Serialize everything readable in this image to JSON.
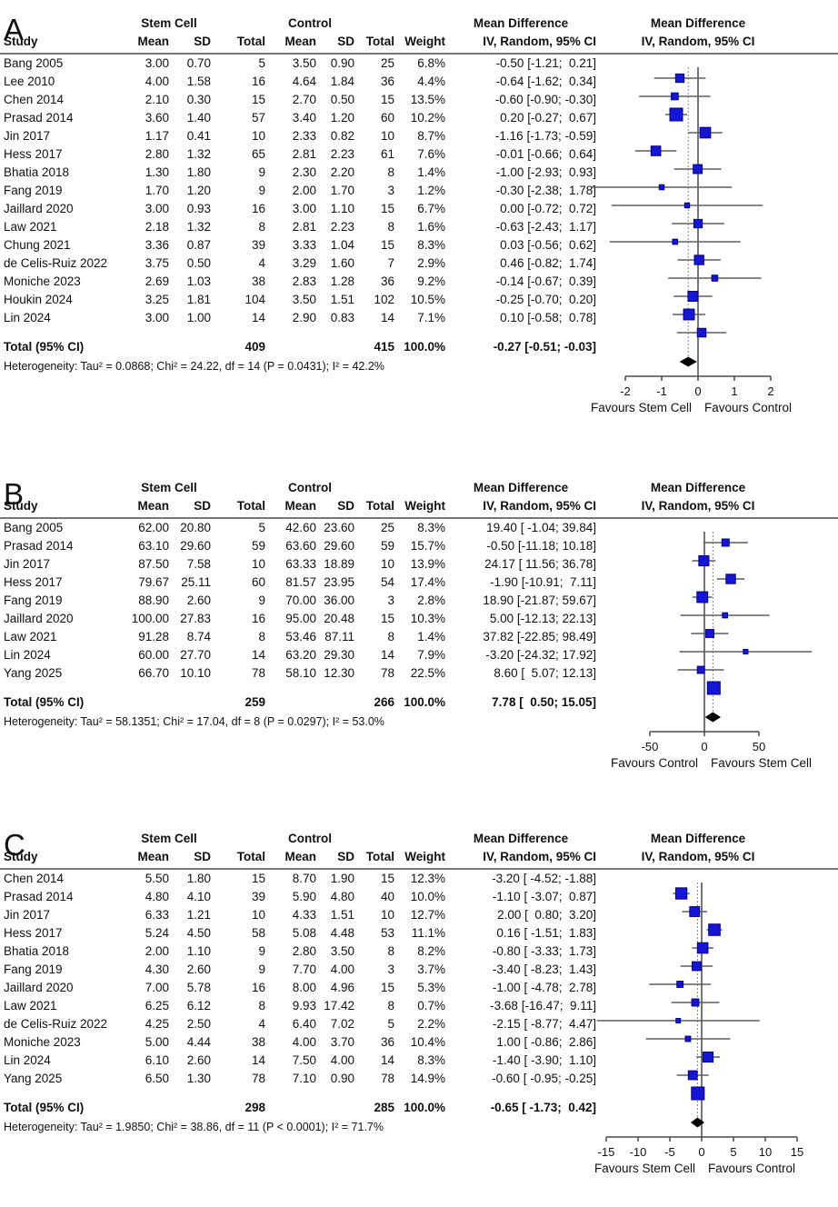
{
  "header": {
    "study": "Study",
    "group1": "Stem Cell",
    "group2": "Control",
    "mean": "Mean",
    "sd": "SD",
    "total": "Total",
    "weight": "Weight",
    "md": "Mean Difference",
    "method": "IV, Random, 95% CI"
  },
  "colors": {
    "square_fill": "#1515d6",
    "square_stroke": "#000090",
    "ci_line": "#5f5f5f",
    "axis_line": "#4a4a4a",
    "rule": "#777777",
    "diamond": "#000000",
    "dotted_line": "#888888"
  },
  "chart_data": [
    {
      "type": "forest",
      "label": "A",
      "effect_measure": "Mean Difference",
      "method": "IV, Random, 95% CI",
      "studies": [
        {
          "study": "Bang 2005",
          "mean1": "3.00",
          "sd1": "0.70",
          "n1": "5",
          "mean2": "3.50",
          "sd2": "0.90",
          "n2": "25",
          "weight": "6.8%",
          "weight_pct": 6.8,
          "ci_text": "-0.50 [-1.21;  0.21]",
          "est": -0.5,
          "lo": -1.21,
          "hi": 0.21
        },
        {
          "study": "Lee 2010",
          "mean1": "4.00",
          "sd1": "1.58",
          "n1": "16",
          "mean2": "4.64",
          "sd2": "1.84",
          "n2": "36",
          "weight": "4.4%",
          "weight_pct": 4.4,
          "ci_text": "-0.64 [-1.62;  0.34]",
          "est": -0.64,
          "lo": -1.62,
          "hi": 0.34
        },
        {
          "study": "Chen 2014",
          "mean1": "2.10",
          "sd1": "0.30",
          "n1": "15",
          "mean2": "2.70",
          "sd2": "0.50",
          "n2": "15",
          "weight": "13.5%",
          "weight_pct": 13.5,
          "ci_text": "-0.60 [-0.90; -0.30]",
          "est": -0.6,
          "lo": -0.9,
          "hi": -0.3
        },
        {
          "study": "Prasad 2014",
          "mean1": "3.60",
          "sd1": "1.40",
          "n1": "57",
          "mean2": "3.40",
          "sd2": "1.20",
          "n2": "60",
          "weight": "10.2%",
          "weight_pct": 10.2,
          "ci_text": "0.20 [-0.27;  0.67]",
          "est": 0.2,
          "lo": -0.27,
          "hi": 0.67
        },
        {
          "study": "Jin 2017",
          "mean1": "1.17",
          "sd1": "0.41",
          "n1": "10",
          "mean2": "2.33",
          "sd2": "0.82",
          "n2": "10",
          "weight": "8.7%",
          "weight_pct": 8.7,
          "ci_text": "-1.16 [-1.73; -0.59]",
          "est": -1.16,
          "lo": -1.73,
          "hi": -0.59
        },
        {
          "study": "Hess 2017",
          "mean1": "2.80",
          "sd1": "1.32",
          "n1": "65",
          "mean2": "2.81",
          "sd2": "2.23",
          "n2": "61",
          "weight": "7.6%",
          "weight_pct": 7.6,
          "ci_text": "-0.01 [-0.66;  0.64]",
          "est": -0.01,
          "lo": -0.66,
          "hi": 0.64
        },
        {
          "study": "Bhatia 2018",
          "mean1": "1.30",
          "sd1": "1.80",
          "n1": "9",
          "mean2": "2.30",
          "sd2": "2.20",
          "n2": "8",
          "weight": "1.4%",
          "weight_pct": 1.4,
          "ci_text": "-1.00 [-2.93;  0.93]",
          "est": -1.0,
          "lo": -2.93,
          "hi": 0.93
        },
        {
          "study": "Fang 2019",
          "mean1": "1.70",
          "sd1": "1.20",
          "n1": "9",
          "mean2": "2.00",
          "sd2": "1.70",
          "n2": "3",
          "weight": "1.2%",
          "weight_pct": 1.2,
          "ci_text": "-0.30 [-2.38;  1.78]",
          "est": -0.3,
          "lo": -2.38,
          "hi": 1.78
        },
        {
          "study": "Jaillard 2020",
          "mean1": "3.00",
          "sd1": "0.93",
          "n1": "16",
          "mean2": "3.00",
          "sd2": "1.10",
          "n2": "15",
          "weight": "6.7%",
          "weight_pct": 6.7,
          "ci_text": "0.00 [-0.72;  0.72]",
          "est": 0.0,
          "lo": -0.72,
          "hi": 0.72
        },
        {
          "study": "Law 2021",
          "mean1": "2.18",
          "sd1": "1.32",
          "n1": "8",
          "mean2": "2.81",
          "sd2": "2.23",
          "n2": "8",
          "weight": "1.6%",
          "weight_pct": 1.6,
          "ci_text": "-0.63 [-2.43;  1.17]",
          "est": -0.63,
          "lo": -2.43,
          "hi": 1.17
        },
        {
          "study": "Chung 2021",
          "mean1": "3.36",
          "sd1": "0.87",
          "n1": "39",
          "mean2": "3.33",
          "sd2": "1.04",
          "n2": "15",
          "weight": "8.3%",
          "weight_pct": 8.3,
          "ci_text": "0.03 [-0.56;  0.62]",
          "est": 0.03,
          "lo": -0.56,
          "hi": 0.62
        },
        {
          "study": "de Celis-Ruiz 2022",
          "mean1": "3.75",
          "sd1": "0.50",
          "n1": "4",
          "mean2": "3.29",
          "sd2": "1.60",
          "n2": "7",
          "weight": "2.9%",
          "weight_pct": 2.9,
          "ci_text": "0.46 [-0.82;  1.74]",
          "est": 0.46,
          "lo": -0.82,
          "hi": 1.74
        },
        {
          "study": "Moniche 2023",
          "mean1": "2.69",
          "sd1": "1.03",
          "n1": "38",
          "mean2": "2.83",
          "sd2": "1.28",
          "n2": "36",
          "weight": "9.2%",
          "weight_pct": 9.2,
          "ci_text": "-0.14 [-0.67;  0.39]",
          "est": -0.14,
          "lo": -0.67,
          "hi": 0.39
        },
        {
          "study": "Houkin 2024",
          "mean1": "3.25",
          "sd1": "1.81",
          "n1": "104",
          "mean2": "3.50",
          "sd2": "1.51",
          "n2": "102",
          "weight": "10.5%",
          "weight_pct": 10.5,
          "ci_text": "-0.25 [-0.70;  0.20]",
          "est": -0.25,
          "lo": -0.7,
          "hi": 0.2
        },
        {
          "study": "Lin 2024",
          "mean1": "3.00",
          "sd1": "1.00",
          "n1": "14",
          "mean2": "2.90",
          "sd2": "0.83",
          "n2": "14",
          "weight": "7.1%",
          "weight_pct": 7.1,
          "ci_text": "0.10 [-0.58;  0.78]",
          "est": 0.1,
          "lo": -0.58,
          "hi": 0.78
        }
      ],
      "total": {
        "label": "Total (95% CI)",
        "n1": "409",
        "n2": "415",
        "weight": "100.0%",
        "ci_text": "-0.27 [-0.51; -0.03]",
        "est": -0.27,
        "lo": -0.51,
        "hi": -0.03
      },
      "heterogeneity": "Heterogeneity: Tau² = 0.0868; Chi² = 24.22, df = 14 (P = 0.0431); I² = 42.2%",
      "axis": {
        "ticks": [
          -2,
          -1,
          0,
          1,
          2
        ],
        "favours_left": "Favours Stem Cell",
        "favours_right": "Favours Control"
      }
    },
    {
      "type": "forest",
      "label": "B",
      "effect_measure": "Mean Difference",
      "method": "IV, Random, 95% CI",
      "studies": [
        {
          "study": "Bang 2005",
          "mean1": "62.00",
          "sd1": "20.80",
          "n1": "5",
          "mean2": "42.60",
          "sd2": "23.60",
          "n2": "25",
          "weight": "8.3%",
          "weight_pct": 8.3,
          "ci_text": "19.40 [ -1.04; 39.84]",
          "est": 19.4,
          "lo": -1.04,
          "hi": 39.84
        },
        {
          "study": "Prasad 2014",
          "mean1": "63.10",
          "sd1": "29.60",
          "n1": "59",
          "mean2": "63.60",
          "sd2": "29.60",
          "n2": "59",
          "weight": "15.7%",
          "weight_pct": 15.7,
          "ci_text": "-0.50 [-11.18; 10.18]",
          "est": -0.5,
          "lo": -11.18,
          "hi": 10.18
        },
        {
          "study": "Jin 2017",
          "mean1": "87.50",
          "sd1": "7.58",
          "n1": "10",
          "mean2": "63.33",
          "sd2": "18.89",
          "n2": "10",
          "weight": "13.9%",
          "weight_pct": 13.9,
          "ci_text": "24.17 [ 11.56; 36.78]",
          "est": 24.17,
          "lo": 11.56,
          "hi": 36.78
        },
        {
          "study": "Hess 2017",
          "mean1": "79.67",
          "sd1": "25.11",
          "n1": "60",
          "mean2": "81.57",
          "sd2": "23.95",
          "n2": "54",
          "weight": "17.4%",
          "weight_pct": 17.4,
          "ci_text": "-1.90 [-10.91;  7.11]",
          "est": -1.9,
          "lo": -10.91,
          "hi": 7.11
        },
        {
          "study": "Fang 2019",
          "mean1": "88.90",
          "sd1": "2.60",
          "n1": "9",
          "mean2": "70.00",
          "sd2": "36.00",
          "n2": "3",
          "weight": "2.8%",
          "weight_pct": 2.8,
          "ci_text": "18.90 [-21.87; 59.67]",
          "est": 18.9,
          "lo": -21.87,
          "hi": 59.67
        },
        {
          "study": "Jaillard 2020",
          "mean1": "100.00",
          "sd1": "27.83",
          "n1": "16",
          "mean2": "95.00",
          "sd2": "20.48",
          "n2": "15",
          "weight": "10.3%",
          "weight_pct": 10.3,
          "ci_text": "5.00 [-12.13; 22.13]",
          "est": 5.0,
          "lo": -12.13,
          "hi": 22.13
        },
        {
          "study": "Law 2021",
          "mean1": "91.28",
          "sd1": "8.74",
          "n1": "8",
          "mean2": "53.46",
          "sd2": "87.11",
          "n2": "8",
          "weight": "1.4%",
          "weight_pct": 1.4,
          "ci_text": "37.82 [-22.85; 98.49]",
          "est": 37.82,
          "lo": -22.85,
          "hi": 98.49
        },
        {
          "study": "Lin 2024",
          "mean1": "60.00",
          "sd1": "27.70",
          "n1": "14",
          "mean2": "63.20",
          "sd2": "29.30",
          "n2": "14",
          "weight": "7.9%",
          "weight_pct": 7.9,
          "ci_text": "-3.20 [-24.32; 17.92]",
          "est": -3.2,
          "lo": -24.32,
          "hi": 17.92
        },
        {
          "study": "Yang 2025",
          "mean1": "66.70",
          "sd1": "10.10",
          "n1": "78",
          "mean2": "58.10",
          "sd2": "12.30",
          "n2": "78",
          "weight": "22.5%",
          "weight_pct": 22.5,
          "ci_text": "8.60 [  5.07; 12.13]",
          "est": 8.6,
          "lo": 5.07,
          "hi": 12.13
        }
      ],
      "total": {
        "label": "Total (95% CI)",
        "n1": "259",
        "n2": "266",
        "weight": "100.0%",
        "ci_text": "7.78 [  0.50; 15.05]",
        "est": 7.78,
        "lo": 0.5,
        "hi": 15.05
      },
      "heterogeneity": "Heterogeneity: Tau² = 58.1351; Chi² = 17.04, df = 8 (P = 0.0297); I² = 53.0%",
      "axis": {
        "ticks": [
          -50,
          0,
          50
        ],
        "favours_left": "Favours Control",
        "favours_right": "Favours Stem Cell"
      }
    },
    {
      "type": "forest",
      "label": "C",
      "effect_measure": "Mean Difference",
      "method": "IV, Random, 95% CI",
      "studies": [
        {
          "study": "Chen 2014",
          "mean1": "5.50",
          "sd1": "1.80",
          "n1": "15",
          "mean2": "8.70",
          "sd2": "1.90",
          "n2": "15",
          "weight": "12.3%",
          "weight_pct": 12.3,
          "ci_text": "-3.20 [ -4.52; -1.88]",
          "est": -3.2,
          "lo": -4.52,
          "hi": -1.88
        },
        {
          "study": "Prasad 2014",
          "mean1": "4.80",
          "sd1": "4.10",
          "n1": "39",
          "mean2": "5.90",
          "sd2": "4.80",
          "n2": "40",
          "weight": "10.0%",
          "weight_pct": 10.0,
          "ci_text": "-1.10 [ -3.07;  0.87]",
          "est": -1.1,
          "lo": -3.07,
          "hi": 0.87
        },
        {
          "study": "Jin 2017",
          "mean1": "6.33",
          "sd1": "1.21",
          "n1": "10",
          "mean2": "4.33",
          "sd2": "1.51",
          "n2": "10",
          "weight": "12.7%",
          "weight_pct": 12.7,
          "ci_text": "2.00 [  0.80;  3.20]",
          "est": 2.0,
          "lo": 0.8,
          "hi": 3.2
        },
        {
          "study": "Hess 2017",
          "mean1": "5.24",
          "sd1": "4.50",
          "n1": "58",
          "mean2": "5.08",
          "sd2": "4.48",
          "n2": "53",
          "weight": "11.1%",
          "weight_pct": 11.1,
          "ci_text": "0.16 [ -1.51;  1.83]",
          "est": 0.16,
          "lo": -1.51,
          "hi": 1.83
        },
        {
          "study": "Bhatia 2018",
          "mean1": "2.00",
          "sd1": "1.10",
          "n1": "9",
          "mean2": "2.80",
          "sd2": "3.50",
          "n2": "8",
          "weight": "8.2%",
          "weight_pct": 8.2,
          "ci_text": "-0.80 [ -3.33;  1.73]",
          "est": -0.8,
          "lo": -3.33,
          "hi": 1.73
        },
        {
          "study": "Fang 2019",
          "mean1": "4.30",
          "sd1": "2.60",
          "n1": "9",
          "mean2": "7.70",
          "sd2": "4.00",
          "n2": "3",
          "weight": "3.7%",
          "weight_pct": 3.7,
          "ci_text": "-3.40 [ -8.23;  1.43]",
          "est": -3.4,
          "lo": -8.23,
          "hi": 1.43
        },
        {
          "study": "Jaillard 2020",
          "mean1": "7.00",
          "sd1": "5.78",
          "n1": "16",
          "mean2": "8.00",
          "sd2": "4.96",
          "n2": "15",
          "weight": "5.3%",
          "weight_pct": 5.3,
          "ci_text": "-1.00 [ -4.78;  2.78]",
          "est": -1.0,
          "lo": -4.78,
          "hi": 2.78
        },
        {
          "study": "Law 2021",
          "mean1": "6.25",
          "sd1": "6.12",
          "n1": "8",
          "mean2": "9.93",
          "sd2": "17.42",
          "n2": "8",
          "weight": "0.7%",
          "weight_pct": 0.7,
          "ci_text": "-3.68 [-16.47;  9.11]",
          "est": -3.68,
          "lo": -16.47,
          "hi": 9.11
        },
        {
          "study": "de Celis-Ruiz 2022",
          "mean1": "4.25",
          "sd1": "2.50",
          "n1": "4",
          "mean2": "6.40",
          "sd2": "7.02",
          "n2": "5",
          "weight": "2.2%",
          "weight_pct": 2.2,
          "ci_text": "-2.15 [ -8.77;  4.47]",
          "est": -2.15,
          "lo": -8.77,
          "hi": 4.47
        },
        {
          "study": "Moniche 2023",
          "mean1": "5.00",
          "sd1": "4.44",
          "n1": "38",
          "mean2": "4.00",
          "sd2": "3.70",
          "n2": "36",
          "weight": "10.4%",
          "weight_pct": 10.4,
          "ci_text": "1.00 [ -0.86;  2.86]",
          "est": 1.0,
          "lo": -0.86,
          "hi": 2.86
        },
        {
          "study": "Lin 2024",
          "mean1": "6.10",
          "sd1": "2.60",
          "n1": "14",
          "mean2": "7.50",
          "sd2": "4.00",
          "n2": "14",
          "weight": "8.3%",
          "weight_pct": 8.3,
          "ci_text": "-1.40 [ -3.90;  1.10]",
          "est": -1.4,
          "lo": -3.9,
          "hi": 1.1
        },
        {
          "study": "Yang 2025",
          "mean1": "6.50",
          "sd1": "1.30",
          "n1": "78",
          "mean2": "7.10",
          "sd2": "0.90",
          "n2": "78",
          "weight": "14.9%",
          "weight_pct": 14.9,
          "ci_text": "-0.60 [ -0.95; -0.25]",
          "est": -0.6,
          "lo": -0.95,
          "hi": -0.25
        }
      ],
      "total": {
        "label": "Total (95% CI)",
        "n1": "298",
        "n2": "285",
        "weight": "100.0%",
        "ci_text": "-0.65 [ -1.73;  0.42]",
        "est": -0.65,
        "lo": -1.73,
        "hi": 0.42
      },
      "heterogeneity": "Heterogeneity: Tau² = 1.9850; Chi² = 38.86, df = 11 (P < 0.0001); I² = 71.7%",
      "axis": {
        "ticks": [
          -15,
          -10,
          -5,
          0,
          5,
          10,
          15
        ],
        "favours_left": "Favours Stem Cell",
        "favours_right": "Favours Control"
      }
    }
  ]
}
